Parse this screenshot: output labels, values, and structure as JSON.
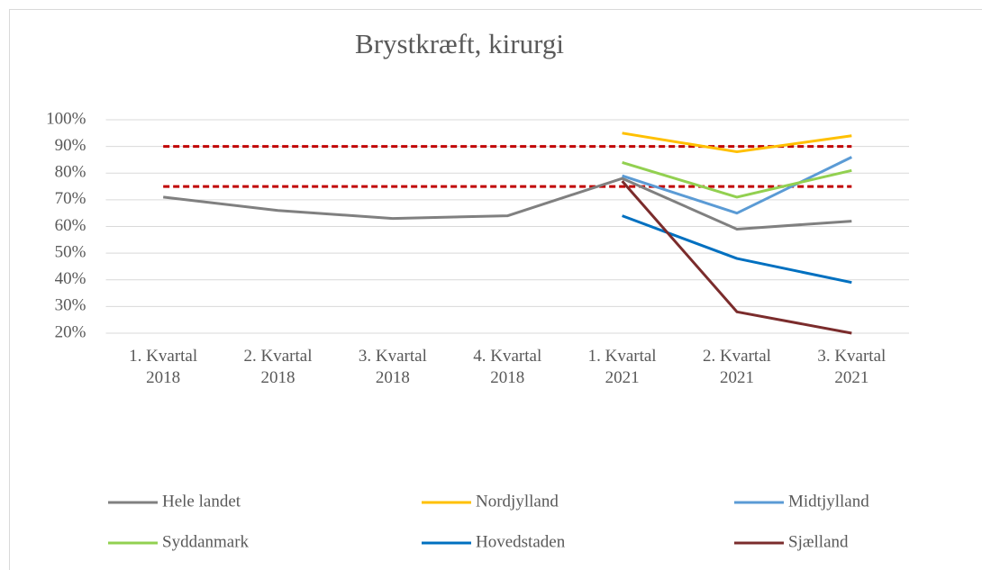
{
  "chart_data": {
    "type": "line",
    "title": "Brystkræft, kirurgi",
    "categories": [
      "1. Kvartal 2018",
      "2. Kvartal 2018",
      "3. Kvartal 2018",
      "4. Kvartal 2018",
      "1. Kvartal 2021",
      "2. Kvartal 2021",
      "3. Kvartal 2021"
    ],
    "series": [
      {
        "name": "Hele landet",
        "color": "#808080",
        "values": [
          71,
          66,
          63,
          64,
          78,
          59,
          62
        ]
      },
      {
        "name": "Nordjylland",
        "color": "#ffc000",
        "values": [
          null,
          null,
          null,
          null,
          95,
          88,
          94
        ]
      },
      {
        "name": "Midtjylland",
        "color": "#5b9bd5",
        "values": [
          null,
          null,
          null,
          null,
          79,
          65,
          86
        ]
      },
      {
        "name": "Syddanmark",
        "color": "#92d050",
        "values": [
          null,
          null,
          null,
          null,
          84,
          71,
          81
        ]
      },
      {
        "name": "Hovedstaden",
        "color": "#0070c0",
        "values": [
          null,
          null,
          null,
          null,
          64,
          48,
          39
        ]
      },
      {
        "name": "Sjælland",
        "color": "#7b2c2c",
        "values": [
          null,
          null,
          null,
          null,
          77,
          28,
          20
        ]
      }
    ],
    "reference_lines": [
      {
        "value": 90,
        "color": "#c00000"
      },
      {
        "value": 75,
        "color": "#c00000"
      }
    ],
    "ylim": [
      20,
      100
    ],
    "yticks": [
      {
        "value": 20,
        "label": "20%"
      },
      {
        "value": 30,
        "label": "30%"
      },
      {
        "value": 40,
        "label": "40%"
      },
      {
        "value": 50,
        "label": "50%"
      },
      {
        "value": 60,
        "label": "60%"
      },
      {
        "value": 70,
        "label": "70%"
      },
      {
        "value": 80,
        "label": "80%"
      },
      {
        "value": 90,
        "label": "90%"
      },
      {
        "value": 100,
        "label": "100%"
      }
    ],
    "grid": true,
    "legend": "bottom"
  }
}
